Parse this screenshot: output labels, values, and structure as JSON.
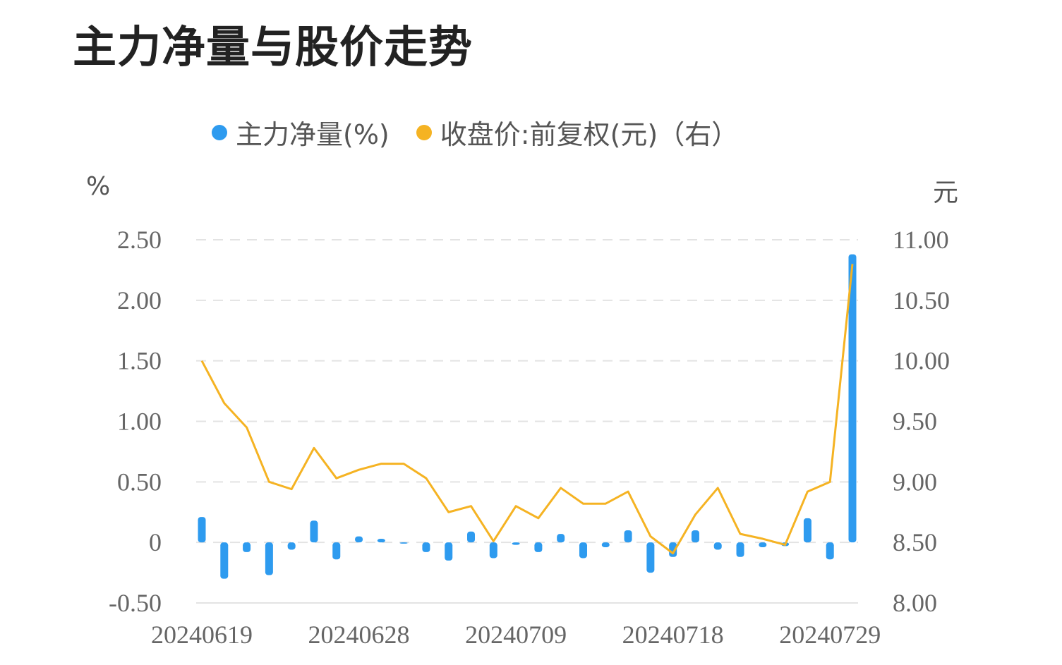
{
  "title": "主力净量与股价走势",
  "legend": [
    {
      "label": "主力净量(%)",
      "color": "#2E9BEF"
    },
    {
      "label": "收盘价:前复权(元)（右）",
      "color": "#F5B323"
    }
  ],
  "left_unit": "%",
  "right_unit": "元",
  "chart_data": {
    "type": "bar",
    "title": "主力净量与股价走势",
    "grid": true,
    "legend_position": "top",
    "x_tick_labels": [
      "20240619",
      "20240628",
      "20240709",
      "20240718",
      "20240729"
    ],
    "x_tick_indices": [
      0,
      7,
      14,
      21,
      28
    ],
    "left_axis": {
      "unit": "%",
      "ticks": [
        "2.50",
        "2.00",
        "1.50",
        "1.00",
        "0.50",
        "0",
        "-0.50"
      ],
      "ylim": [
        -0.5,
        2.5
      ]
    },
    "right_axis": {
      "unit": "元",
      "ticks": [
        "11.00",
        "10.50",
        "10.00",
        "9.50",
        "9.00",
        "8.50",
        "8.00"
      ],
      "ylim": [
        8.0,
        11.0
      ]
    },
    "series": [
      {
        "name": "主力净量(%)",
        "type": "bar",
        "axis": "left",
        "color": "#2E9BEF",
        "values": [
          0.21,
          -0.3,
          -0.08,
          -0.27,
          -0.06,
          0.18,
          -0.14,
          0.05,
          0.03,
          -0.01,
          -0.08,
          -0.15,
          0.09,
          -0.13,
          -0.02,
          -0.08,
          0.07,
          -0.13,
          -0.04,
          0.1,
          -0.25,
          -0.12,
          0.1,
          -0.06,
          -0.12,
          -0.04,
          -0.03,
          0.2,
          -0.14,
          2.38
        ]
      },
      {
        "name": "收盘价:前复权(元)（右）",
        "type": "line",
        "axis": "right",
        "color": "#F5B323",
        "values": [
          10.0,
          9.65,
          9.45,
          9.0,
          8.94,
          9.28,
          9.03,
          9.1,
          9.15,
          9.15,
          9.03,
          8.75,
          8.8,
          8.51,
          8.8,
          8.7,
          8.95,
          8.82,
          8.82,
          8.92,
          8.55,
          8.41,
          8.73,
          8.95,
          8.57,
          8.53,
          8.48,
          8.92,
          9.0,
          10.8
        ]
      }
    ]
  }
}
